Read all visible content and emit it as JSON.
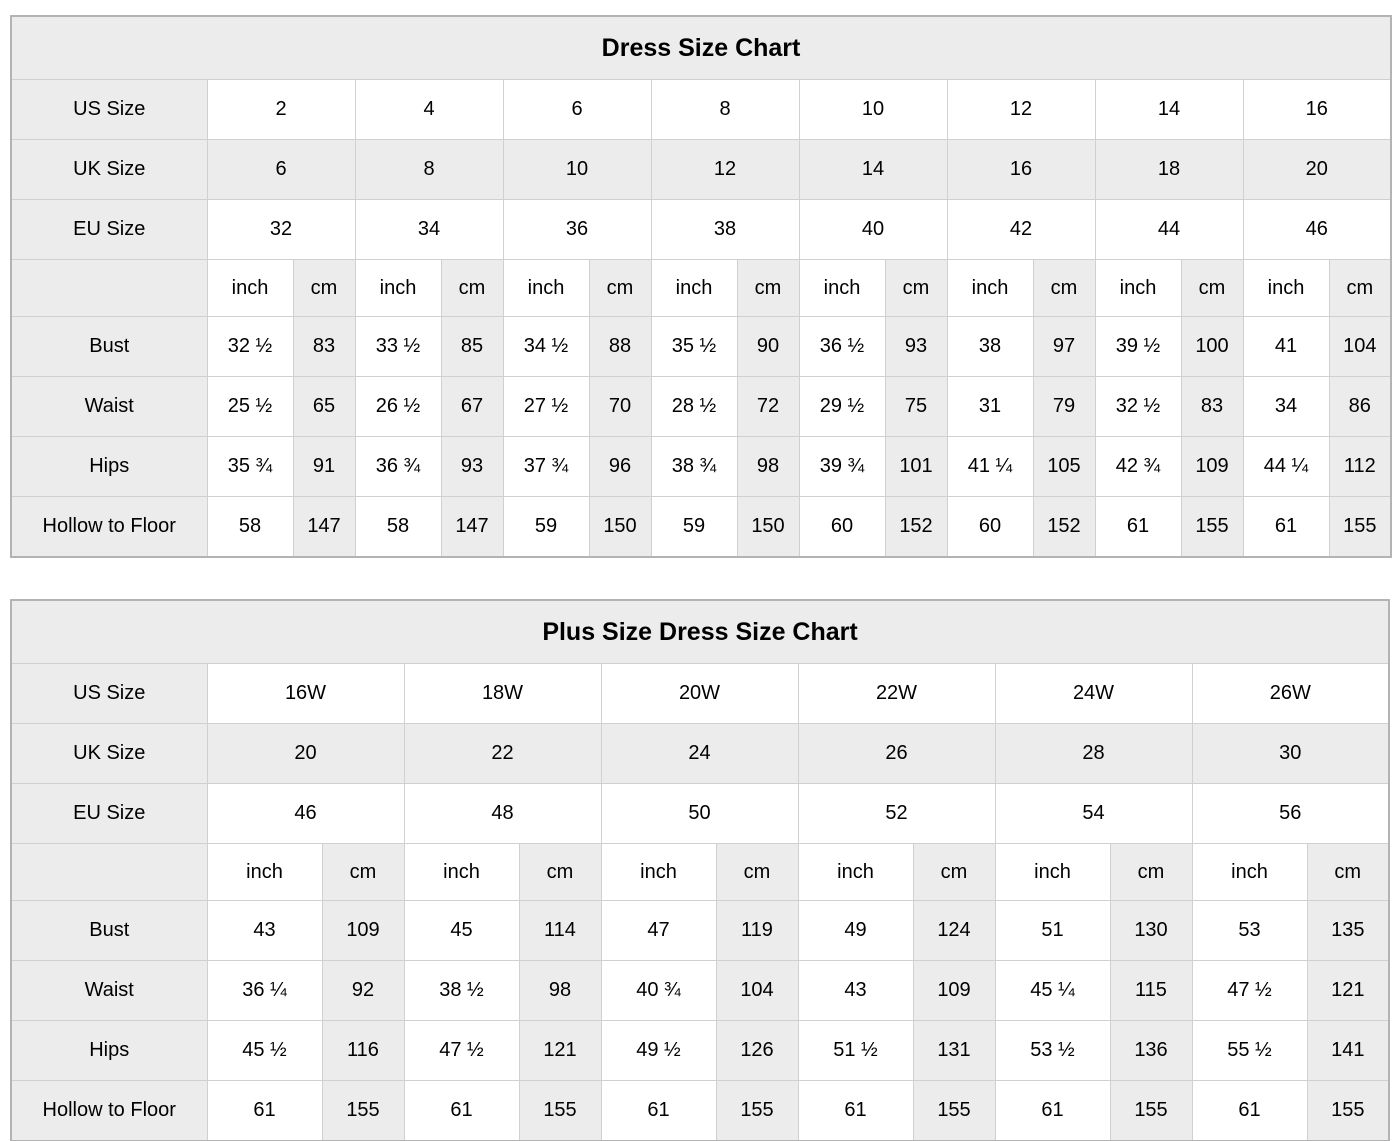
{
  "page": {
    "background": "#ffffff"
  },
  "colors": {
    "shaded_cell": "#ececec",
    "grid_border": "#d0d0d0",
    "outer_border": "#b3b3b3",
    "text": "#000000"
  },
  "units": {
    "inch": "inch",
    "cm": "cm"
  },
  "charts": [
    {
      "title": "Dress Size Chart",
      "size_rows": [
        {
          "label": "US Size",
          "values": [
            "2",
            "4",
            "6",
            "8",
            "10",
            "12",
            "14",
            "16"
          ]
        },
        {
          "label": "UK Size",
          "values": [
            "6",
            "8",
            "10",
            "12",
            "14",
            "16",
            "18",
            "20"
          ]
        },
        {
          "label": "EU Size",
          "values": [
            "32",
            "34",
            "36",
            "38",
            "40",
            "42",
            "44",
            "46"
          ]
        }
      ],
      "measurement_rows": [
        {
          "label": "Bust",
          "values": [
            [
              "32 ½",
              "83"
            ],
            [
              "33 ½",
              "85"
            ],
            [
              "34 ½",
              "88"
            ],
            [
              "35 ½",
              "90"
            ],
            [
              "36 ½",
              "93"
            ],
            [
              "38",
              "97"
            ],
            [
              "39 ½",
              "100"
            ],
            [
              "41",
              "104"
            ]
          ]
        },
        {
          "label": "Waist",
          "values": [
            [
              "25 ½",
              "65"
            ],
            [
              "26 ½",
              "67"
            ],
            [
              "27 ½",
              "70"
            ],
            [
              "28 ½",
              "72"
            ],
            [
              "29 ½",
              "75"
            ],
            [
              "31",
              "79"
            ],
            [
              "32 ½",
              "83"
            ],
            [
              "34",
              "86"
            ]
          ]
        },
        {
          "label": "Hips",
          "values": [
            [
              "35 ¾",
              "91"
            ],
            [
              "36 ¾",
              "93"
            ],
            [
              "37 ¾",
              "96"
            ],
            [
              "38 ¾",
              "98"
            ],
            [
              "39 ¾",
              "101"
            ],
            [
              "41 ¼",
              "105"
            ],
            [
              "42 ¾",
              "109"
            ],
            [
              "44 ¼",
              "112"
            ]
          ]
        },
        {
          "label": "Hollow to Floor",
          "values": [
            [
              "58",
              "147"
            ],
            [
              "58",
              "147"
            ],
            [
              "59",
              "150"
            ],
            [
              "59",
              "150"
            ],
            [
              "60",
              "152"
            ],
            [
              "60",
              "152"
            ],
            [
              "61",
              "155"
            ],
            [
              "61",
              "155"
            ]
          ]
        }
      ]
    },
    {
      "title": "Plus Size Dress Size Chart",
      "size_rows": [
        {
          "label": "US Size",
          "values": [
            "16W",
            "18W",
            "20W",
            "22W",
            "24W",
            "26W"
          ]
        },
        {
          "label": "UK Size",
          "values": [
            "20",
            "22",
            "24",
            "26",
            "28",
            "30"
          ]
        },
        {
          "label": "EU Size",
          "values": [
            "46",
            "48",
            "50",
            "52",
            "54",
            "56"
          ]
        }
      ],
      "measurement_rows": [
        {
          "label": "Bust",
          "values": [
            [
              "43",
              "109"
            ],
            [
              "45",
              "114"
            ],
            [
              "47",
              "119"
            ],
            [
              "49",
              "124"
            ],
            [
              "51",
              "130"
            ],
            [
              "53",
              "135"
            ]
          ]
        },
        {
          "label": "Waist",
          "values": [
            [
              "36 ¼",
              "92"
            ],
            [
              "38 ½",
              "98"
            ],
            [
              "40 ¾",
              "104"
            ],
            [
              "43",
              "109"
            ],
            [
              "45 ¼",
              "115"
            ],
            [
              "47 ½",
              "121"
            ]
          ]
        },
        {
          "label": "Hips",
          "values": [
            [
              "45 ½",
              "116"
            ],
            [
              "47 ½",
              "121"
            ],
            [
              "49 ½",
              "126"
            ],
            [
              "51 ½",
              "131"
            ],
            [
              "53 ½",
              "136"
            ],
            [
              "55 ½",
              "141"
            ]
          ]
        },
        {
          "label": "Hollow to Floor",
          "values": [
            [
              "61",
              "155"
            ],
            [
              "61",
              "155"
            ],
            [
              "61",
              "155"
            ],
            [
              "61",
              "155"
            ],
            [
              "61",
              "155"
            ],
            [
              "61",
              "155"
            ]
          ]
        }
      ]
    }
  ]
}
